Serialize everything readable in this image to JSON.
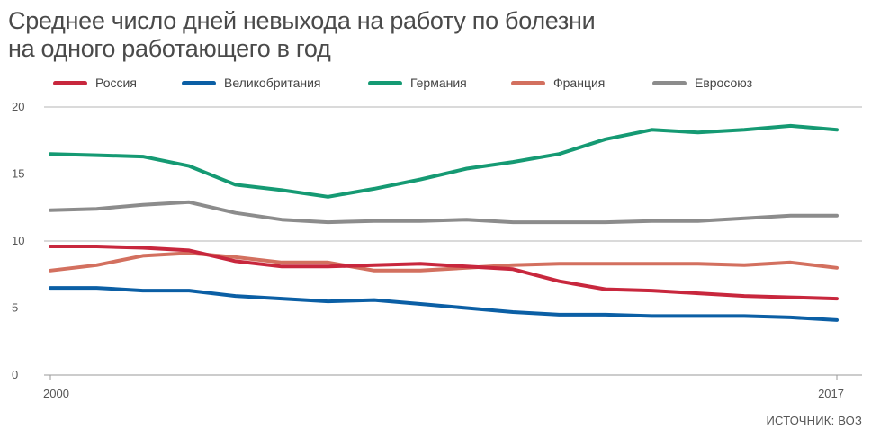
{
  "title_line1": "Среднее число дней невыхода на работу по болезни",
  "title_line2": "на одного работающего в год",
  "source": "ИСТОЧНИК: ВОЗ",
  "chart_data": {
    "type": "line",
    "title": "Среднее число дней невыхода на работу по болезни на одного работающего в год",
    "xlabel": "",
    "ylabel": "",
    "x": [
      2000,
      2001,
      2002,
      2003,
      2004,
      2005,
      2006,
      2007,
      2008,
      2009,
      2010,
      2011,
      2012,
      2013,
      2014,
      2015,
      2016,
      2017
    ],
    "x_tick_labels": [
      "2000",
      "2017"
    ],
    "y_ticks": [
      0,
      5,
      10,
      15,
      20
    ],
    "ylim": [
      0,
      20
    ],
    "grid": true,
    "legend_position": "top",
    "series": [
      {
        "name": "Россия",
        "color": "#c8273d",
        "values": [
          9.6,
          9.6,
          9.5,
          9.3,
          8.5,
          8.1,
          8.1,
          8.2,
          8.3,
          8.1,
          7.9,
          7.0,
          6.4,
          6.3,
          6.1,
          5.9,
          5.8,
          5.7
        ]
      },
      {
        "name": "Великобритания",
        "color": "#0b5fa5",
        "values": [
          6.5,
          6.5,
          6.3,
          6.3,
          5.9,
          5.7,
          5.5,
          5.6,
          5.3,
          5.0,
          4.7,
          4.5,
          4.5,
          4.4,
          4.4,
          4.4,
          4.3,
          4.1
        ]
      },
      {
        "name": "Германия",
        "color": "#159a73",
        "values": [
          16.5,
          16.4,
          16.3,
          15.6,
          14.2,
          13.8,
          13.3,
          13.9,
          14.6,
          15.4,
          15.9,
          16.5,
          17.6,
          18.3,
          18.1,
          18.3,
          18.6,
          18.3
        ]
      },
      {
        "name": "Франция",
        "color": "#d3705f",
        "values": [
          7.8,
          8.2,
          8.9,
          9.1,
          8.8,
          8.4,
          8.4,
          7.8,
          7.8,
          8.0,
          8.2,
          8.3,
          8.3,
          8.3,
          8.3,
          8.2,
          8.4,
          8.0
        ]
      },
      {
        "name": "Евросоюз",
        "color": "#8c8c8c",
        "values": [
          12.3,
          12.4,
          12.7,
          12.9,
          12.1,
          11.6,
          11.4,
          11.5,
          11.5,
          11.6,
          11.4,
          11.4,
          11.4,
          11.5,
          11.5,
          11.7,
          11.9,
          11.9
        ]
      }
    ]
  }
}
